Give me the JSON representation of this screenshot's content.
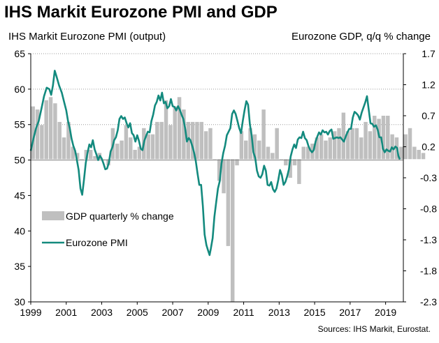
{
  "title": "IHS Markit Eurozone PMI and GDP",
  "left_axis_label": "IHS Markit Eurozone PMI (output)",
  "right_axis_label": "Eurozone GDP, q/q % change",
  "source": "Sources: IHS Markit, Eurostat.",
  "chart_data": {
    "type": "bar+line",
    "legend": {
      "placement": "bottom-left",
      "entries": [
        {
          "label": "GDP quarterly % change",
          "kind": "bar",
          "color": "#bfbfbf"
        },
        {
          "label": "Eurozone PMI",
          "kind": "line",
          "color": "#138a7e"
        }
      ]
    },
    "x_ticks": [
      "1999",
      "2001",
      "2003",
      "2005",
      "2007",
      "2009",
      "2011",
      "2013",
      "2015",
      "2017",
      "2019"
    ],
    "x_range": [
      1999.0,
      2020.0
    ],
    "left_axis": {
      "range": [
        30,
        65
      ],
      "ticks": [
        "65",
        "60",
        "55",
        "50",
        "45",
        "40",
        "35",
        "30"
      ]
    },
    "right_axis": {
      "range": [
        -2.3,
        1.7
      ],
      "ticks": [
        "1.7",
        "1.2",
        "0.7",
        "0.2",
        "-0.3",
        "-0.8",
        "-1.3",
        "-1.8",
        "-2.3"
      ]
    },
    "gridlines": "horizontal",
    "gdp_series": {
      "name": "GDP quarterly % change",
      "axis": "right",
      "quarters_start": "1999Q1",
      "values": [
        0.85,
        0.8,
        0.55,
        0.95,
        1.0,
        0.9,
        0.6,
        0.35,
        0.6,
        0.2,
        0.1,
        0.0,
        0.15,
        0.15,
        0.05,
        0.1,
        0.0,
        -0.1,
        0.5,
        0.25,
        0.3,
        0.55,
        0.35,
        0.15,
        0.2,
        0.5,
        0.4,
        0.4,
        0.6,
        0.6,
        0.95,
        0.55,
        0.85,
        1.0,
        0.8,
        0.6,
        0.6,
        0.6,
        0.6,
        0.45,
        0.5,
        0.0,
        -0.35,
        -0.55,
        -1.4,
        -2.3,
        -0.1,
        0.45,
        0.3,
        0.5,
        0.4,
        0.3,
        0.8,
        0.2,
        0.1,
        0.5,
        0.0,
        -0.1,
        -0.3,
        -0.1,
        -0.4,
        0.2,
        0.2,
        0.25,
        0.35,
        0.4,
        0.3,
        0.35,
        0.45,
        0.5,
        0.75,
        0.45,
        0.5,
        0.5,
        0.35,
        0.6,
        0.45,
        0.7,
        0.65,
        0.7,
        0.7,
        0.4,
        0.35,
        0.2,
        0.4,
        0.5,
        0.2,
        0.15,
        0.1
      ]
    },
    "pmi_series": {
      "name": "Eurozone PMI",
      "axis": "left",
      "points": [
        [
          1999.0,
          51.3
        ],
        [
          1999.15,
          53.0
        ],
        [
          1999.3,
          54.5
        ],
        [
          1999.45,
          55.5
        ],
        [
          1999.6,
          57.2
        ],
        [
          1999.75,
          59.0
        ],
        [
          1999.9,
          60.2
        ],
        [
          2000.05,
          60.0
        ],
        [
          2000.15,
          59.2
        ],
        [
          2000.25,
          60.5
        ],
        [
          2000.35,
          62.6
        ],
        [
          2000.45,
          61.8
        ],
        [
          2000.6,
          60.5
        ],
        [
          2000.75,
          59.5
        ],
        [
          2000.9,
          58.0
        ],
        [
          2001.0,
          57.0
        ],
        [
          2001.1,
          55.5
        ],
        [
          2001.2,
          54.5
        ],
        [
          2001.3,
          53.0
        ],
        [
          2001.4,
          52.0
        ],
        [
          2001.5,
          51.3
        ],
        [
          2001.6,
          50.0
        ],
        [
          2001.7,
          48.6
        ],
        [
          2001.8,
          46.0
        ],
        [
          2001.9,
          45.1
        ],
        [
          2002.0,
          47.2
        ],
        [
          2002.1,
          49.6
        ],
        [
          2002.2,
          51.0
        ],
        [
          2002.3,
          52.2
        ],
        [
          2002.4,
          51.8
        ],
        [
          2002.5,
          52.8
        ],
        [
          2002.6,
          51.5
        ],
        [
          2002.7,
          50.8
        ],
        [
          2002.8,
          50.0
        ],
        [
          2002.9,
          50.6
        ],
        [
          2003.0,
          50.2
        ],
        [
          2003.1,
          49.5
        ],
        [
          2003.2,
          48.7
        ],
        [
          2003.3,
          48.8
        ],
        [
          2003.4,
          49.6
        ],
        [
          2003.5,
          51.2
        ],
        [
          2003.6,
          51.8
        ],
        [
          2003.7,
          52.8
        ],
        [
          2003.8,
          53.2
        ],
        [
          2003.9,
          54.2
        ],
        [
          2004.0,
          55.8
        ],
        [
          2004.1,
          56.2
        ],
        [
          2004.2,
          55.8
        ],
        [
          2004.3,
          56.0
        ],
        [
          2004.4,
          55.2
        ],
        [
          2004.5,
          54.6
        ],
        [
          2004.6,
          55.2
        ],
        [
          2004.7,
          53.8
        ],
        [
          2004.8,
          53.5
        ],
        [
          2004.9,
          52.6
        ],
        [
          2005.0,
          53.5
        ],
        [
          2005.1,
          52.7
        ],
        [
          2005.2,
          51.6
        ],
        [
          2005.3,
          51.4
        ],
        [
          2005.4,
          52.7
        ],
        [
          2005.5,
          53.4
        ],
        [
          2005.6,
          54.0
        ],
        [
          2005.7,
          53.9
        ],
        [
          2005.8,
          55.5
        ],
        [
          2005.9,
          56.4
        ],
        [
          2006.0,
          57.7
        ],
        [
          2006.1,
          58.2
        ],
        [
          2006.2,
          59.1
        ],
        [
          2006.3,
          58.4
        ],
        [
          2006.4,
          59.5
        ],
        [
          2006.5,
          58.0
        ],
        [
          2006.6,
          58.2
        ],
        [
          2006.7,
          57.3
        ],
        [
          2006.8,
          57.6
        ],
        [
          2006.9,
          58.6
        ],
        [
          2007.0,
          57.6
        ],
        [
          2007.1,
          57.5
        ],
        [
          2007.2,
          57.0
        ],
        [
          2007.3,
          57.6
        ],
        [
          2007.4,
          57.1
        ],
        [
          2007.5,
          56.4
        ],
        [
          2007.6,
          55.8
        ],
        [
          2007.7,
          54.5
        ],
        [
          2007.8,
          52.6
        ],
        [
          2007.9,
          53.1
        ],
        [
          2008.0,
          52.8
        ],
        [
          2008.1,
          52.0
        ],
        [
          2008.2,
          51.1
        ],
        [
          2008.3,
          49.9
        ],
        [
          2008.4,
          48.1
        ],
        [
          2008.5,
          46.5
        ],
        [
          2008.6,
          46.5
        ],
        [
          2008.7,
          43.5
        ],
        [
          2008.8,
          39.5
        ],
        [
          2008.9,
          38.0
        ],
        [
          2009.0,
          37.2
        ],
        [
          2009.08,
          36.6
        ],
        [
          2009.15,
          37.5
        ],
        [
          2009.25,
          39.0
        ],
        [
          2009.35,
          42.0
        ],
        [
          2009.45,
          44.0
        ],
        [
          2009.55,
          46.0
        ],
        [
          2009.65,
          47.0
        ],
        [
          2009.75,
          49.5
        ],
        [
          2009.85,
          51.0
        ],
        [
          2009.95,
          52.0
        ],
        [
          2010.05,
          53.5
        ],
        [
          2010.15,
          54.0
        ],
        [
          2010.25,
          54.5
        ],
        [
          2010.35,
          56.5
        ],
        [
          2010.45,
          57.0
        ],
        [
          2010.55,
          56.5
        ],
        [
          2010.65,
          55.5
        ],
        [
          2010.75,
          54.5
        ],
        [
          2010.85,
          53.8
        ],
        [
          2010.95,
          55.5
        ],
        [
          2011.05,
          57.0
        ],
        [
          2011.15,
          58.3
        ],
        [
          2011.25,
          57.8
        ],
        [
          2011.35,
          55.0
        ],
        [
          2011.45,
          53.5
        ],
        [
          2011.55,
          51.1
        ],
        [
          2011.65,
          50.3
        ],
        [
          2011.75,
          48.5
        ],
        [
          2011.85,
          47.7
        ],
        [
          2011.95,
          47.5
        ],
        [
          2012.05,
          48.0
        ],
        [
          2012.15,
          49.2
        ],
        [
          2012.25,
          48.5
        ],
        [
          2012.35,
          46.5
        ],
        [
          2012.45,
          46.4
        ],
        [
          2012.55,
          46.9
        ],
        [
          2012.65,
          45.9
        ],
        [
          2012.75,
          45.5
        ],
        [
          2012.85,
          46.0
        ],
        [
          2012.95,
          47.2
        ],
        [
          2013.05,
          48.6
        ],
        [
          2013.15,
          47.9
        ],
        [
          2013.25,
          46.5
        ],
        [
          2013.35,
          46.9
        ],
        [
          2013.45,
          47.7
        ],
        [
          2013.55,
          48.7
        ],
        [
          2013.65,
          50.5
        ],
        [
          2013.75,
          51.5
        ],
        [
          2013.85,
          52.2
        ],
        [
          2013.95,
          51.7
        ],
        [
          2014.05,
          52.9
        ],
        [
          2014.15,
          53.2
        ],
        [
          2014.25,
          53.1
        ],
        [
          2014.35,
          54.0
        ],
        [
          2014.45,
          53.1
        ],
        [
          2014.55,
          52.8
        ],
        [
          2014.65,
          52.0
        ],
        [
          2014.75,
          51.4
        ],
        [
          2014.85,
          51.1
        ],
        [
          2014.95,
          51.4
        ],
        [
          2015.05,
          52.6
        ],
        [
          2015.15,
          53.3
        ],
        [
          2015.25,
          53.9
        ],
        [
          2015.35,
          53.6
        ],
        [
          2015.45,
          54.2
        ],
        [
          2015.55,
          53.9
        ],
        [
          2015.65,
          54.0
        ],
        [
          2015.75,
          53.6
        ],
        [
          2015.85,
          54.1
        ],
        [
          2015.95,
          54.3
        ],
        [
          2016.05,
          53.0
        ],
        [
          2016.15,
          53.1
        ],
        [
          2016.25,
          53.2
        ],
        [
          2016.35,
          53.1
        ],
        [
          2016.45,
          53.2
        ],
        [
          2016.55,
          52.9
        ],
        [
          2016.65,
          52.6
        ],
        [
          2016.75,
          53.3
        ],
        [
          2016.85,
          53.9
        ],
        [
          2016.95,
          54.4
        ],
        [
          2017.05,
          54.4
        ],
        [
          2017.15,
          56.0
        ],
        [
          2017.25,
          56.8
        ],
        [
          2017.35,
          56.6
        ],
        [
          2017.45,
          56.3
        ],
        [
          2017.55,
          55.7
        ],
        [
          2017.65,
          56.7
        ],
        [
          2017.75,
          57.4
        ],
        [
          2017.85,
          58.1
        ],
        [
          2017.95,
          59.0
        ],
        [
          2018.05,
          57.1
        ],
        [
          2018.15,
          55.2
        ],
        [
          2018.25,
          55.1
        ],
        [
          2018.35,
          54.7
        ],
        [
          2018.45,
          54.9
        ],
        [
          2018.55,
          54.3
        ],
        [
          2018.65,
          53.2
        ],
        [
          2018.75,
          53.2
        ],
        [
          2018.85,
          51.6
        ],
        [
          2018.95,
          51.1
        ],
        [
          2019.05,
          51.5
        ],
        [
          2019.15,
          51.3
        ],
        [
          2019.25,
          51.2
        ],
        [
          2019.35,
          51.8
        ],
        [
          2019.45,
          51.5
        ],
        [
          2019.55,
          51.9
        ],
        [
          2019.65,
          51.7
        ],
        [
          2019.72,
          50.6
        ],
        [
          2019.8,
          50.1
        ]
      ]
    }
  }
}
